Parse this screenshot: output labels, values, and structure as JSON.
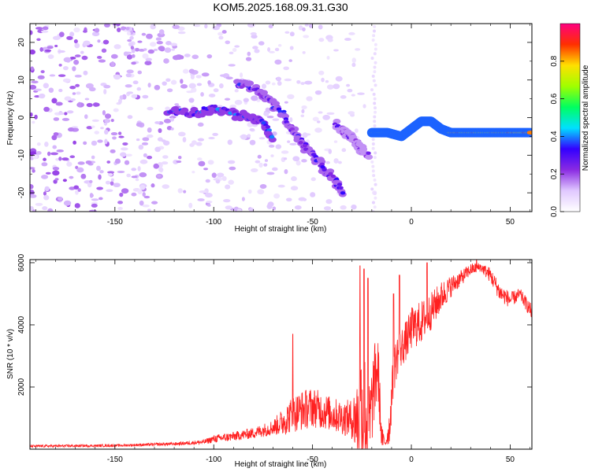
{
  "title": "KOM5.2025.168.09.31.G30",
  "chart_data": [
    {
      "type": "heatmap",
      "name": "spectrogram",
      "xlabel": "Height of straight line (km)",
      "ylabel": "Frequency (Hz)",
      "xlim": [
        -193,
        61
      ],
      "ylim": [
        -25,
        25
      ],
      "x_ticks": [
        -150,
        -100,
        -50,
        0,
        50
      ],
      "x_tick_labels": [
        "-150",
        "-100",
        "-50",
        "0",
        "50"
      ],
      "y_ticks": [
        -20,
        -10,
        0,
        10,
        20
      ],
      "y_tick_labels": [
        "-20",
        "-10",
        "0",
        "10",
        "20"
      ],
      "colorbar": {
        "label": "Normalized spectral amplitude",
        "range": [
          0,
          1
        ],
        "ticks": [
          0.0,
          0.2,
          0.4,
          0.6,
          0.8
        ],
        "tick_labels": [
          "0.0",
          "0.2",
          "0.4",
          "0.6",
          "0.8"
        ],
        "colors": [
          "#ffffff",
          "#e0c8ff",
          "#8a2be2",
          "#3300ff",
          "#00e0ff",
          "#00ff60",
          "#a0ff00",
          "#ffe000",
          "#ff3000",
          "#ff0080"
        ]
      },
      "features": [
        {
          "name": "branch-main",
          "x": [
            -123,
            -110,
            -100,
            -90,
            -82,
            -75,
            -70
          ],
          "y": [
            2,
            1,
            2.5,
            1,
            0,
            -1,
            -6
          ],
          "amplitude": 0.35
        },
        {
          "name": "branch-descending",
          "x": [
            -88,
            -80,
            -73,
            -65,
            -58,
            -52,
            -45,
            -38,
            -35
          ],
          "y": [
            9,
            8,
            5,
            1,
            -5,
            -9,
            -13,
            -17,
            -20
          ],
          "amplitude": 0.3
        },
        {
          "name": "branch-mid",
          "x": [
            -38,
            -34,
            -30,
            -26,
            -22
          ],
          "y": [
            -2,
            -4,
            -5,
            -8,
            -10
          ],
          "amplitude": 0.25
        },
        {
          "name": "tone",
          "x": [
            -20,
            -12,
            -5,
            0,
            5,
            10,
            15,
            20,
            30,
            40,
            50,
            61
          ],
          "y": [
            -4,
            -4,
            -5,
            -3,
            -1,
            -1,
            -3,
            -4,
            -4,
            -4,
            -4,
            -4
          ],
          "amplitude": 0.85
        }
      ]
    },
    {
      "type": "line",
      "name": "snr",
      "xlabel": "Height of straight line (km)",
      "ylabel": "SNR (10 * v/v)",
      "xlim": [
        -193,
        61
      ],
      "ylim": [
        0,
        6100
      ],
      "x_ticks": [
        -150,
        -100,
        -50,
        0,
        50
      ],
      "x_tick_labels": [
        "-150",
        "-100",
        "-50",
        "0",
        "50"
      ],
      "y_ticks": [
        2000,
        4000,
        6000
      ],
      "y_tick_labels": [
        "2000",
        "4000",
        "6000"
      ],
      "color": "#ff2020",
      "envelope": {
        "x": [
          -193,
          -150,
          -120,
          -105,
          -100,
          -90,
          -80,
          -70,
          -65,
          -60,
          -55,
          -50,
          -45,
          -40,
          -35,
          -30,
          -27,
          -25,
          -23,
          -21,
          -19,
          -17,
          -15,
          -13,
          -11,
          -9,
          -7,
          -5,
          -2,
          0,
          5,
          10,
          15,
          20,
          25,
          30,
          35,
          40,
          45,
          50,
          55,
          61
        ],
        "base": [
          80,
          100,
          150,
          200,
          280,
          350,
          450,
          600,
          700,
          900,
          1000,
          1100,
          1000,
          900,
          800,
          700,
          400,
          300,
          200,
          200,
          1500,
          2200,
          200,
          150,
          500,
          2200,
          2800,
          3000,
          3300,
          3600,
          3800,
          4200,
          4700,
          5100,
          5400,
          5700,
          5800,
          5500,
          4900,
          4700,
          4900,
          4300
        ],
        "amp": [
          80,
          80,
          100,
          150,
          250,
          300,
          350,
          500,
          900,
          1200,
          1300,
          1300,
          1200,
          1100,
          1100,
          1300,
          3000,
          5000,
          4000,
          3000,
          2500,
          2500,
          800,
          200,
          1200,
          1500,
          1400,
          1300,
          1300,
          1400,
          1400,
          1200,
          1000,
          700,
          500,
          400,
          300,
          500,
          600,
          500,
          400,
          500
        ],
        "spikes": [
          {
            "x": -60,
            "y": 3700
          },
          {
            "x": -26,
            "y": 5900
          },
          {
            "x": -24,
            "y": 5800
          },
          {
            "x": -22,
            "y": 5500
          },
          {
            "x": -9,
            "y": 5000
          },
          {
            "x": -6,
            "y": 5600
          },
          {
            "x": 8,
            "y": 6000
          },
          {
            "x": 33,
            "y": 6100
          }
        ]
      }
    }
  ]
}
